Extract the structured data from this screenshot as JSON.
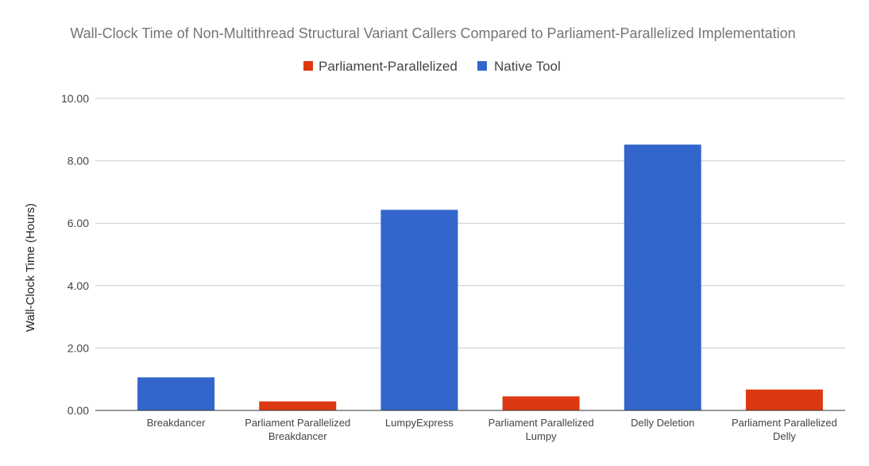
{
  "chart_data": {
    "type": "bar",
    "title": "Wall-Clock Time of Non-Multithread Structural Variant Callers Compared to Parliament-Parallelized Implementation",
    "ylabel": "Wall-Clock Time (Hours)",
    "xlabel": "",
    "ylim": [
      0,
      10
    ],
    "yticks": [
      "0.00",
      "2.00",
      "4.00",
      "6.00",
      "8.00",
      "10.00"
    ],
    "grid": true,
    "legend_position": "top",
    "legend": [
      {
        "name": "Parliament-Parallelized",
        "color": "#dc3912"
      },
      {
        "name": "Native Tool",
        "color": "#3366cc"
      }
    ],
    "bars": [
      {
        "label": [
          "Breakdancer"
        ],
        "value": 1.06,
        "series": "Native Tool",
        "color": "#3366cc"
      },
      {
        "label": [
          "Parliament Parallelized",
          "Breakdancer"
        ],
        "value": 0.29,
        "series": "Parliament-Parallelized",
        "color": "#dc3912"
      },
      {
        "label": [
          "LumpyExpress"
        ],
        "value": 6.43,
        "series": "Native Tool",
        "color": "#3366cc"
      },
      {
        "label": [
          "Parliament Parallelized",
          "Lumpy"
        ],
        "value": 0.45,
        "series": "Parliament-Parallelized",
        "color": "#dc3912"
      },
      {
        "label": [
          "Delly Deletion"
        ],
        "value": 8.52,
        "series": "Native Tool",
        "color": "#3366cc"
      },
      {
        "label": [
          "Parliament Parallelized",
          "Delly"
        ],
        "value": 0.67,
        "series": "Parliament-Parallelized",
        "color": "#dc3912"
      }
    ]
  }
}
